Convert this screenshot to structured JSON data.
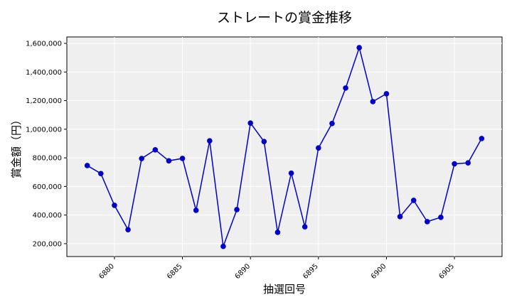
{
  "chart_data": {
    "type": "line",
    "title": "ストレートの賞金推移",
    "xlabel": "抽選回号",
    "ylabel": "賞金額（円）",
    "x": [
      6878,
      6879,
      6880,
      6881,
      6882,
      6883,
      6884,
      6885,
      6886,
      6887,
      6888,
      6889,
      6890,
      6891,
      6892,
      6893,
      6894,
      6895,
      6896,
      6897,
      6898,
      6899,
      6900,
      6901,
      6902,
      6903,
      6904,
      6905,
      6906,
      6907
    ],
    "series": [
      {
        "values": [
          746000,
          690000,
          468000,
          298000,
          795000,
          856000,
          779000,
          796000,
          433000,
          919000,
          181000,
          438000,
          1043000,
          914000,
          279000,
          693000,
          318000,
          869000,
          1040000,
          1288000,
          1570000,
          1193000,
          1248000,
          389000,
          503000,
          354000,
          384000,
          758000,
          765000,
          935000
        ],
        "color": "#0000cc"
      }
    ],
    "xticks": [
      "6880",
      "6885",
      "6890",
      "6895",
      "6900",
      "6905"
    ],
    "yticks": [
      "200,000",
      "400,000",
      "600,000",
      "800,000",
      "1,000,000",
      "1,200,000",
      "1,400,000",
      "1,600,000"
    ],
    "xlim": [
      6876.5,
      6908.5
    ],
    "ylim": [
      110000,
      1645000
    ],
    "grid": true
  }
}
